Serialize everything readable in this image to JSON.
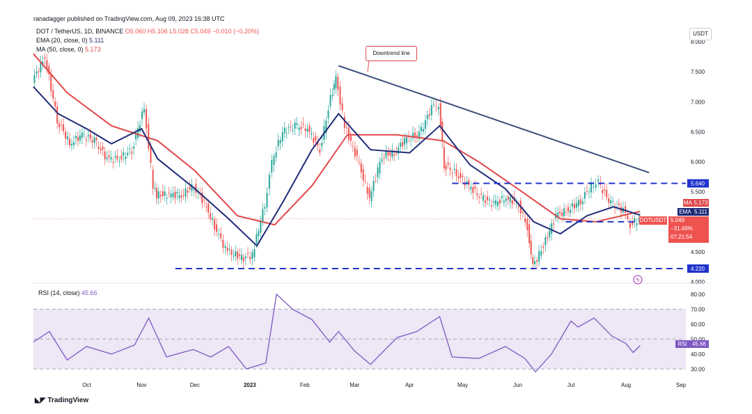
{
  "header": {
    "publisher": "ranadagger published on TradingView.com, Aug 09, 2023 16:38 UTC",
    "symbol": "DOT / TetherUS, 1D, BINANCE",
    "ohlc": "O5.060  H5.106  L5.028  C5.049  −0.010 (−0.20%)",
    "ema_label": "EMA (20, close, 0)",
    "ema_value": "5.111",
    "ma_label": "MA (50, close, 0)",
    "ma_value": "5.173",
    "currency": "USDT"
  },
  "annotation": {
    "text": "Downtrend line"
  },
  "price_tag": {
    "symbol": "DOTUSDT",
    "value": "5.049",
    "change": "−31.49%",
    "countdown": "07:21:54"
  },
  "rsi_legend": {
    "label": "RSI (14, close)",
    "value": "45.66",
    "tag": "RSI"
  },
  "brand": "TradingView",
  "colors": {
    "up": "#26a69a",
    "down": "#ef5350",
    "ema": "#1e2a78",
    "ma": "#e0484a",
    "trend": "#3b4f7a",
    "level": "#1f33cc",
    "rsi": "#7e57c2",
    "rsi_band": "#ede7f6"
  },
  "chart_data": [
    {
      "type": "line",
      "title": "DOT / TetherUS, 1D, BINANCE",
      "y_scale": "linear",
      "ylim": [
        4.0,
        8.0
      ],
      "y_ticks": [
        "8.000",
        "7.500",
        "7.000",
        "6.500",
        "6.000",
        "5.500",
        "4.500",
        "4.000"
      ],
      "x_ticks": [
        "Oct",
        "Nov",
        "Dec",
        "2023",
        "Feb",
        "Mar",
        "Apr",
        "May",
        "Jun",
        "Jul",
        "Aug",
        "Sep"
      ],
      "x_tick_dates": [
        "2022-10-01",
        "2022-11-01",
        "2022-12-01",
        "2023-01-01",
        "2023-02-01",
        "2023-03-01",
        "2023-04-01",
        "2023-05-01",
        "2023-06-01",
        "2023-07-01",
        "2023-08-01",
        "2023-09-01"
      ],
      "series": [
        {
          "name": "DOT / TetherUS",
          "x": [
            "2022-09-01",
            "2022-09-08",
            "2022-09-15",
            "2022-09-22",
            "2022-09-29",
            "2022-10-06",
            "2022-10-13",
            "2022-10-20",
            "2022-10-27",
            "2022-11-03",
            "2022-11-08",
            "2022-11-10",
            "2022-11-17",
            "2022-11-24",
            "2022-12-01",
            "2022-12-08",
            "2022-12-15",
            "2022-12-20",
            "2022-12-29",
            "2023-01-03",
            "2023-01-10",
            "2023-01-14",
            "2023-01-20",
            "2023-01-27",
            "2023-02-03",
            "2023-02-10",
            "2023-02-16",
            "2023-02-19",
            "2023-02-24",
            "2023-03-03",
            "2023-03-10",
            "2023-03-17",
            "2023-03-24",
            "2023-03-31",
            "2023-04-07",
            "2023-04-14",
            "2023-04-18",
            "2023-04-21",
            "2023-04-28",
            "2023-05-05",
            "2023-05-12",
            "2023-05-19",
            "2023-05-26",
            "2023-06-02",
            "2023-06-07",
            "2023-06-10",
            "2023-06-16",
            "2023-06-23",
            "2023-06-30",
            "2023-07-07",
            "2023-07-13",
            "2023-07-17",
            "2023-07-24",
            "2023-07-31",
            "2023-08-04",
            "2023-08-09"
          ],
          "values": [
            7.35,
            7.75,
            6.7,
            6.3,
            6.45,
            6.35,
            6.05,
            6.05,
            6.2,
            6.9,
            5.6,
            5.45,
            5.45,
            5.45,
            5.6,
            5.25,
            4.75,
            4.5,
            4.4,
            4.45,
            5.3,
            6.0,
            6.5,
            6.6,
            6.55,
            6.2,
            7.05,
            7.4,
            6.6,
            6.05,
            5.4,
            6.1,
            6.15,
            6.4,
            6.45,
            6.9,
            6.95,
            5.95,
            5.8,
            5.6,
            5.4,
            5.3,
            5.4,
            5.3,
            4.9,
            4.25,
            4.6,
            5.1,
            5.2,
            5.35,
            5.6,
            5.65,
            5.3,
            5.2,
            4.95,
            5.049
          ]
        },
        {
          "name": "EMA (20, close, 0)",
          "x": [
            "2022-09-01",
            "2022-09-15",
            "2022-10-01",
            "2022-10-15",
            "2022-11-01",
            "2022-11-10",
            "2022-12-01",
            "2022-12-20",
            "2023-01-05",
            "2023-01-20",
            "2023-02-05",
            "2023-02-20",
            "2023-03-10",
            "2023-04-01",
            "2023-04-18",
            "2023-05-05",
            "2023-05-25",
            "2023-06-10",
            "2023-06-25",
            "2023-07-10",
            "2023-07-25",
            "2023-08-09"
          ],
          "values": [
            7.25,
            6.8,
            6.55,
            6.3,
            6.55,
            6.05,
            5.55,
            5.05,
            4.6,
            5.35,
            6.2,
            6.8,
            6.2,
            6.15,
            6.6,
            5.95,
            5.55,
            5.0,
            4.8,
            5.1,
            5.25,
            5.111
          ]
        },
        {
          "name": "MA (50, close, 0)",
          "x": [
            "2022-09-01",
            "2022-09-20",
            "2022-10-15",
            "2022-11-10",
            "2022-12-01",
            "2022-12-25",
            "2023-01-15",
            "2023-02-05",
            "2023-02-25",
            "2023-03-25",
            "2023-04-20",
            "2023-05-10",
            "2023-06-01",
            "2023-06-25",
            "2023-07-15",
            "2023-08-09"
          ],
          "values": [
            7.8,
            7.15,
            6.6,
            6.35,
            5.85,
            5.1,
            4.95,
            5.6,
            6.45,
            6.45,
            6.35,
            6.0,
            5.55,
            5.05,
            5.0,
            5.173
          ]
        }
      ],
      "trend_line": {
        "name": "Downtrend line",
        "from": [
          "2023-02-20",
          7.6
        ],
        "to": [
          "2023-08-14",
          5.82
        ]
      },
      "levels": [
        {
          "label": "5.640",
          "value": 5.64,
          "from": "2023-04-25"
        },
        {
          "label": "5.000",
          "value": 5.0,
          "from": "2023-06-28"
        },
        {
          "label": "4.220",
          "value": 4.22,
          "from": "2022-11-20"
        }
      ],
      "markers": [
        {
          "label": "MA",
          "value": "5.173"
        },
        {
          "label": "EMA",
          "value": "5.111"
        }
      ]
    },
    {
      "type": "line",
      "title": "RSI (14, close)",
      "ylim": [
        25,
        85
      ],
      "y_ticks": [
        "80.00",
        "70.00",
        "60.00",
        "50.00",
        "40.00",
        "30.00"
      ],
      "bands": [
        30,
        70
      ],
      "midline": 50,
      "series": [
        {
          "name": "RSI (14, close)",
          "x": [
            "2022-09-01",
            "2022-09-10",
            "2022-09-20",
            "2022-10-01",
            "2022-10-15",
            "2022-10-28",
            "2022-11-05",
            "2022-11-15",
            "2022-11-30",
            "2022-12-10",
            "2022-12-20",
            "2022-12-30",
            "2023-01-10",
            "2023-01-16",
            "2023-01-25",
            "2023-02-05",
            "2023-02-15",
            "2023-02-20",
            "2023-03-01",
            "2023-03-10",
            "2023-03-25",
            "2023-04-05",
            "2023-04-18",
            "2023-04-25",
            "2023-05-10",
            "2023-05-25",
            "2023-06-05",
            "2023-06-11",
            "2023-06-20",
            "2023-07-01",
            "2023-07-05",
            "2023-07-14",
            "2023-07-24",
            "2023-08-01",
            "2023-08-05",
            "2023-08-09"
          ],
          "values": [
            48,
            55,
            36,
            45,
            40,
            46,
            64,
            38,
            43,
            38,
            45,
            30,
            34,
            80,
            70,
            63,
            48,
            55,
            42,
            33,
            51,
            55,
            65,
            38,
            37,
            45,
            37,
            28,
            40,
            62,
            58,
            64,
            52,
            47,
            41,
            45.66
          ]
        }
      ]
    }
  ]
}
